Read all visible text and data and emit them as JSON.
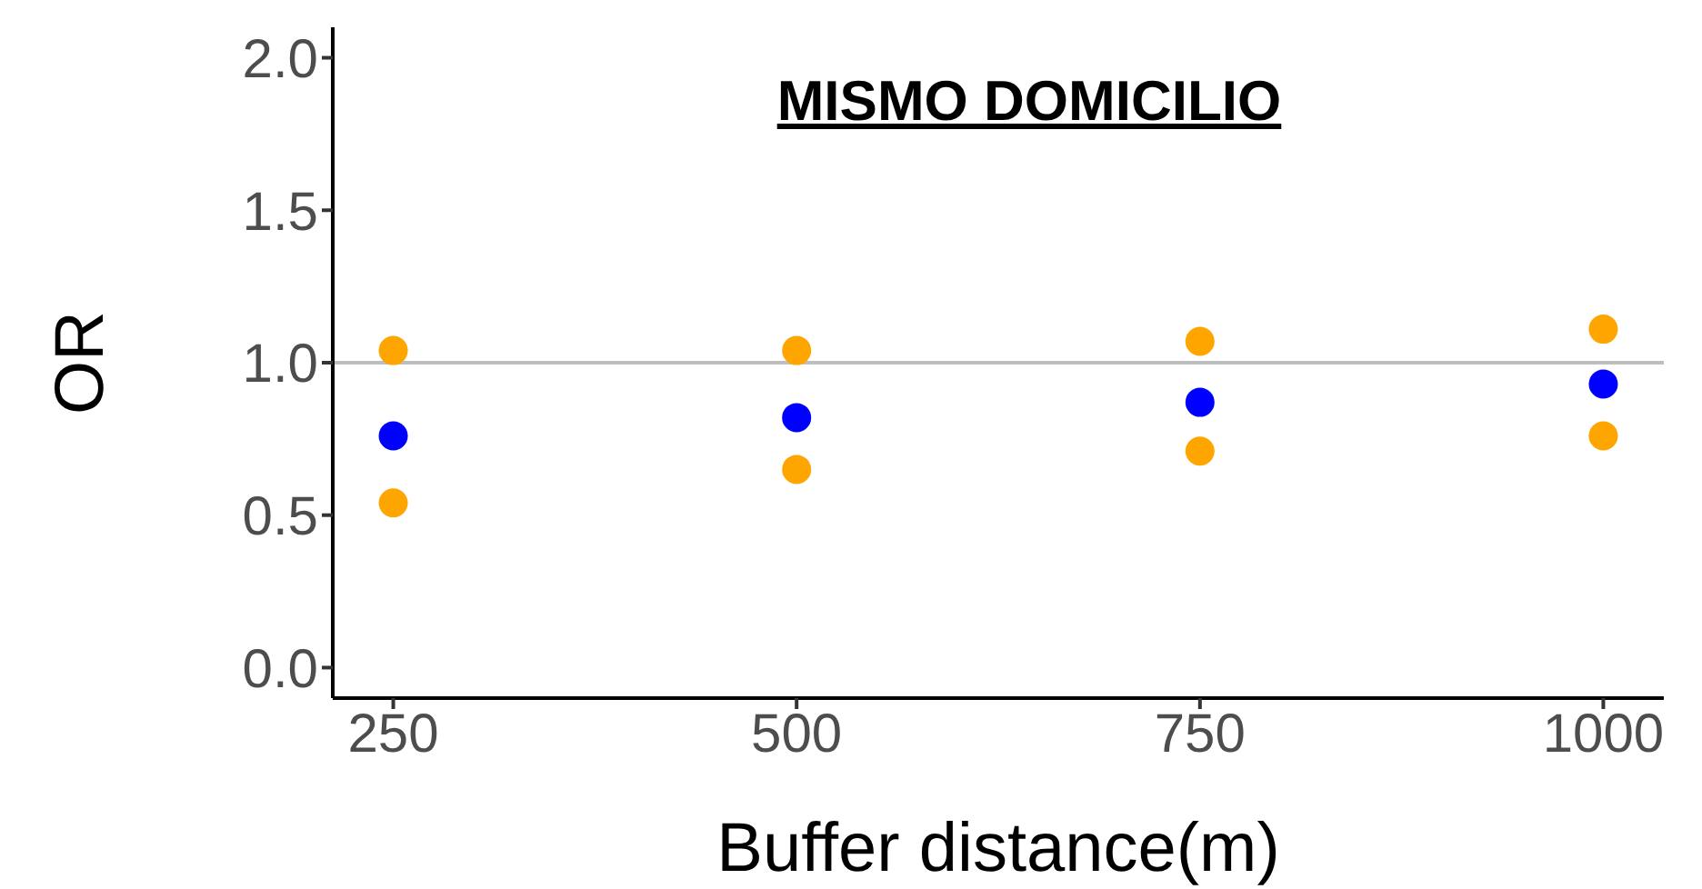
{
  "chart_data": {
    "type": "scatter",
    "title": "MISMO DOMICILIO",
    "xlabel": "Buffer distance(m)",
    "ylabel": "OR",
    "x": [
      250,
      500,
      750,
      1000
    ],
    "series": [
      {
        "color": "#ffa500",
        "values": [
          1.04,
          1.04,
          1.07,
          1.11
        ]
      },
      {
        "color": "#0000ff",
        "values": [
          0.76,
          0.82,
          0.87,
          0.93
        ]
      },
      {
        "color": "#ffa500",
        "values": [
          0.54,
          0.65,
          0.71,
          0.76
        ]
      }
    ],
    "xlim": [
      212.5,
      1037.5
    ],
    "xticks": [
      250,
      500,
      750,
      1000
    ],
    "ylim": [
      -0.1,
      2.1
    ],
    "yticks": [
      {
        "value": 0,
        "label": "0.0"
      },
      {
        "value": 0.5,
        "label": "0.5"
      },
      {
        "value": 1,
        "label": "1.0"
      },
      {
        "value": 1.5,
        "label": "1.5"
      },
      {
        "value": 2,
        "label": "2.0"
      }
    ],
    "ref_lines": [
      {
        "axis": "y",
        "value": 1,
        "color": "#bebebe"
      }
    ],
    "grid": false,
    "legend": false,
    "marker": "circle"
  }
}
